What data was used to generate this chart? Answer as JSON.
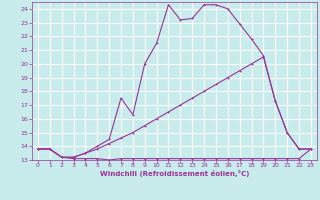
{
  "xlabel": "Windchill (Refroidissement éolien,°C)",
  "bg_color": "#c8ecec",
  "grid_color": "#ffffff",
  "line_color": "#993399",
  "xlim": [
    -0.5,
    23.5
  ],
  "ylim": [
    13,
    24.5
  ],
  "yticks": [
    13,
    14,
    15,
    16,
    17,
    18,
    19,
    20,
    21,
    22,
    23,
    24
  ],
  "xticks": [
    0,
    1,
    2,
    3,
    4,
    5,
    6,
    7,
    8,
    9,
    10,
    11,
    12,
    13,
    14,
    15,
    16,
    17,
    18,
    19,
    20,
    21,
    22,
    23
  ],
  "series1_x": [
    0,
    1,
    2,
    3,
    4,
    5,
    6,
    7,
    8,
    9,
    10,
    11,
    12,
    13,
    14,
    15,
    16,
    17,
    18,
    19,
    20,
    21,
    22,
    23
  ],
  "series1_y": [
    13.8,
    13.8,
    13.2,
    13.1,
    13.1,
    13.1,
    13.0,
    13.1,
    13.1,
    13.1,
    13.1,
    13.1,
    13.1,
    13.1,
    13.1,
    13.1,
    13.1,
    13.1,
    13.1,
    13.1,
    13.1,
    13.1,
    13.1,
    13.8
  ],
  "series2_x": [
    0,
    1,
    2,
    3,
    4,
    5,
    6,
    7,
    8,
    9,
    10,
    11,
    12,
    13,
    14,
    15,
    16,
    17,
    18,
    19,
    20,
    21,
    22,
    23
  ],
  "series2_y": [
    13.8,
    13.8,
    13.2,
    13.2,
    13.5,
    14.0,
    14.5,
    17.5,
    16.3,
    20.0,
    21.5,
    24.3,
    23.2,
    23.3,
    24.3,
    24.3,
    24.0,
    22.9,
    21.8,
    20.6,
    17.3,
    15.0,
    13.8,
    13.8
  ],
  "series3_x": [
    0,
    1,
    2,
    3,
    4,
    5,
    6,
    7,
    8,
    9,
    10,
    11,
    12,
    13,
    14,
    15,
    16,
    17,
    18,
    19,
    20,
    21,
    22,
    23
  ],
  "series3_y": [
    13.8,
    13.8,
    13.2,
    13.2,
    13.5,
    13.8,
    14.2,
    14.6,
    15.0,
    15.5,
    16.0,
    16.5,
    17.0,
    17.5,
    18.0,
    18.5,
    19.0,
    19.5,
    20.0,
    20.5,
    17.3,
    15.0,
    13.8,
    13.8
  ]
}
